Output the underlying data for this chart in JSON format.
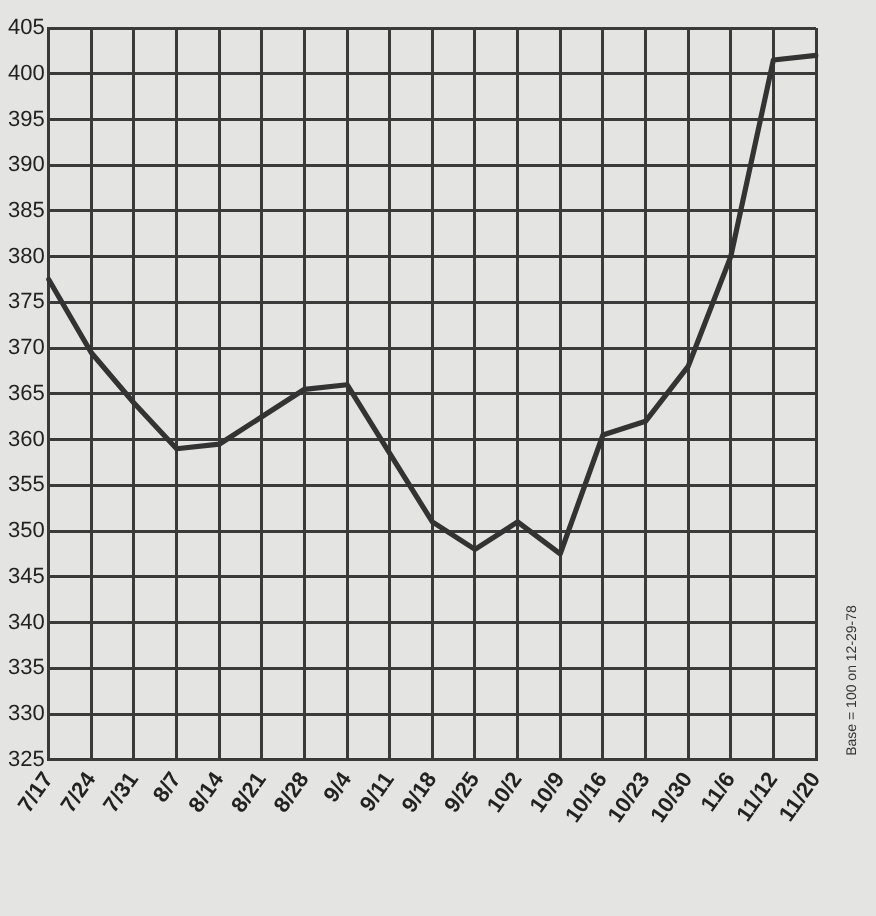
{
  "chart_data": {
    "type": "line",
    "categories": [
      "7/17",
      "7/24",
      "7/31",
      "8/7",
      "8/14",
      "8/21",
      "8/28",
      "9/4",
      "9/11",
      "9/18",
      "9/25",
      "10/2",
      "10/9",
      "10/16",
      "10/23",
      "10/30",
      "11/6",
      "11/12",
      "11/20"
    ],
    "series": [
      {
        "color": "#333333",
        "values": [
          377.5,
          369.5,
          364,
          359,
          359.5,
          362.5,
          365.5,
          366,
          358.5,
          351,
          348,
          351,
          347.5,
          360.5,
          362,
          368,
          380,
          401.5,
          402
        ]
      }
    ],
    "ylim": [
      325,
      405
    ],
    "yticks": [
      325,
      330,
      335,
      340,
      345,
      350,
      355,
      360,
      365,
      370,
      375,
      380,
      385,
      390,
      395,
      400,
      405
    ],
    "grid": true,
    "legend": false,
    "marker": "none",
    "line_style": "solid",
    "annotations": [
      "Base = 100 on 12-29-78"
    ]
  }
}
